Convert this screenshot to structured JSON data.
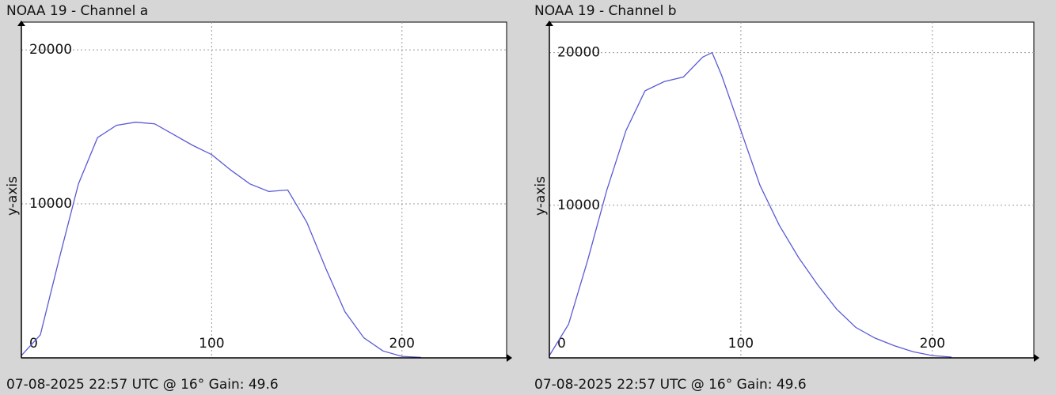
{
  "chart_data": [
    {
      "type": "line",
      "title": "NOAA 19 - Channel a",
      "ylabel": "y-axis",
      "footer": "07-08-2025 22:57 UTC @ 16° Gain: 49.6",
      "x": [
        0,
        10,
        20,
        30,
        40,
        50,
        60,
        70,
        80,
        90,
        100,
        110,
        120,
        130,
        140,
        150,
        160,
        170,
        180,
        190,
        200,
        210
      ],
      "series": [
        {
          "color": "#5a5ad6",
          "values": [
            150,
            1500,
            6500,
            11300,
            14300,
            15100,
            15300,
            15200,
            14500,
            13800,
            13200,
            12200,
            11300,
            10800,
            10900,
            8800,
            5800,
            3000,
            1300,
            450,
            100,
            30
          ]
        }
      ],
      "xlim": [
        0,
        255
      ],
      "xticks": [
        0,
        100,
        200
      ],
      "ylim": [
        0,
        21800
      ],
      "yticks": [
        10000,
        20000
      ],
      "grid": true
    },
    {
      "type": "line",
      "title": "NOAA 19 - Channel b",
      "ylabel": "y-axis",
      "footer": "07-08-2025 22:57 UTC @ 16° Gain: 49.6",
      "x": [
        0,
        10,
        20,
        30,
        40,
        50,
        60,
        70,
        80,
        85,
        90,
        100,
        110,
        120,
        130,
        140,
        150,
        160,
        170,
        180,
        190,
        200,
        210
      ],
      "series": [
        {
          "color": "#5a5ad6",
          "values": [
            150,
            2200,
            6400,
            11000,
            14900,
            17500,
            18100,
            18400,
            19700,
            20000,
            18500,
            14900,
            11300,
            8700,
            6600,
            4800,
            3200,
            2000,
            1300,
            800,
            400,
            150,
            50
          ]
        }
      ],
      "xlim": [
        0,
        253
      ],
      "xticks": [
        0,
        100,
        200
      ],
      "ylim": [
        0,
        22000
      ],
      "yticks": [
        10000,
        20000
      ],
      "grid": true
    }
  ]
}
